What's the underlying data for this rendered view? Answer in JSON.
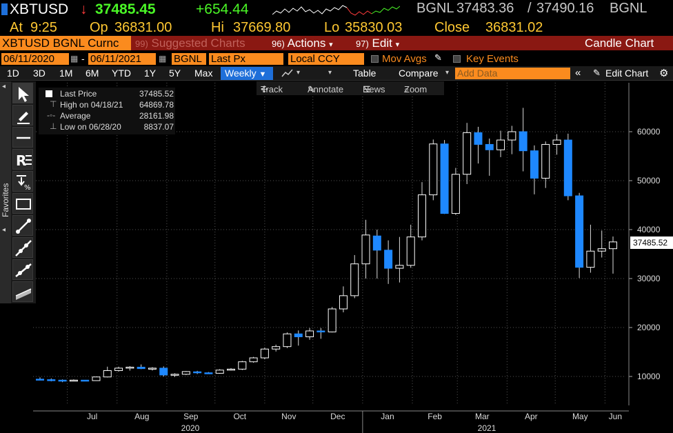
{
  "quote": {
    "ticker": "XBTUSD",
    "last": "37485.45",
    "change": "+654.44",
    "source": "BGNL",
    "bid": "37483.36",
    "ask": "37490.16",
    "source2": "BGNL",
    "at_label": "At",
    "time": "9:25",
    "open_label": "Op",
    "open": "36831.00",
    "high_label": "Hi",
    "high": "37669.80",
    "low_label": "Lo",
    "low": "35830.03",
    "close_label": "Close",
    "close": "36831.02"
  },
  "toolbar": {
    "security": "XBTUSD BGNL Curnc",
    "suggested_num": "99)",
    "suggested": "Suggested Charts",
    "actions_num": "96)",
    "actions": "Actions",
    "edit_num": "97)",
    "edit": "Edit",
    "chart_type": "Candle Chart"
  },
  "settings": {
    "start_date": "06/11/2020",
    "end_date": "06/11/2021",
    "source": "BGNL",
    "field": "Last Px",
    "currency": "Local CCY",
    "mov_avgs": "Mov Avgs",
    "key_events": "Key Events"
  },
  "periods": [
    "1D",
    "3D",
    "1M",
    "6M",
    "YTD",
    "1Y",
    "5Y",
    "Max"
  ],
  "frequency": "Weekly",
  "period_bar": {
    "table": "Table",
    "compare": "Compare",
    "add_data_placeholder": "Add Data",
    "edit_chart": "Edit Chart"
  },
  "left_tools": {
    "favorites": "Favorites"
  },
  "annotate_bar": {
    "track": "Track",
    "annotate": "Annotate",
    "news": "News",
    "zoom": "Zoom"
  },
  "legend": {
    "last_label": "Last Price",
    "last_value": "37485.52",
    "high_label": "High on 04/18/21",
    "high_value": "64869.78",
    "avg_label": "Average",
    "avg_value": "28161.98",
    "low_label": "Low on 06/28/20",
    "low_value": "8837.07"
  },
  "colors": {
    "up": "#ffffff",
    "down": "#1e88ff",
    "accent": "#fb8b1e",
    "bar_red": "#8a1812"
  },
  "chart_data": {
    "type": "candlestick",
    "frequency": "weekly",
    "y_ticks": [
      10000,
      20000,
      30000,
      40000,
      50000,
      60000
    ],
    "ylim": [
      0,
      69000
    ],
    "grid": true,
    "x_month_labels": [
      "Jul",
      "Aug",
      "Sep",
      "Oct",
      "Nov",
      "Dec",
      "Jan",
      "Feb",
      "Mar",
      "Apr",
      "May",
      "Jun"
    ],
    "x_year_labels": [
      "2020",
      "2021"
    ],
    "last_value_tag": "37485.52",
    "candles": [
      {
        "date": "2020-06-14",
        "open": 9450,
        "high": 9800,
        "low": 9200,
        "close": 9350
      },
      {
        "date": "2020-06-21",
        "open": 9350,
        "high": 9600,
        "low": 9000,
        "close": 9250
      },
      {
        "date": "2020-06-28",
        "open": 9250,
        "high": 9400,
        "low": 8840,
        "close": 9100
      },
      {
        "date": "2020-07-05",
        "open": 9100,
        "high": 9400,
        "low": 9050,
        "close": 9250
      },
      {
        "date": "2020-07-12",
        "open": 9250,
        "high": 9300,
        "low": 9050,
        "close": 9150
      },
      {
        "date": "2020-07-19",
        "open": 9150,
        "high": 9950,
        "low": 9100,
        "close": 9900
      },
      {
        "date": "2020-07-26",
        "open": 9900,
        "high": 12000,
        "low": 9800,
        "close": 11200
      },
      {
        "date": "2020-08-02",
        "open": 11200,
        "high": 12000,
        "low": 11000,
        "close": 11700
      },
      {
        "date": "2020-08-09",
        "open": 11700,
        "high": 12100,
        "low": 11200,
        "close": 11900
      },
      {
        "date": "2020-08-16",
        "open": 11900,
        "high": 12450,
        "low": 11500,
        "close": 11600
      },
      {
        "date": "2020-08-23",
        "open": 11600,
        "high": 11900,
        "low": 11200,
        "close": 11700
      },
      {
        "date": "2020-08-30",
        "open": 11700,
        "high": 12050,
        "low": 10000,
        "close": 10300
      },
      {
        "date": "2020-09-06",
        "open": 10300,
        "high": 10650,
        "low": 9900,
        "close": 10450
      },
      {
        "date": "2020-09-13",
        "open": 10450,
        "high": 11100,
        "low": 10300,
        "close": 11000
      },
      {
        "date": "2020-09-20",
        "open": 10950,
        "high": 11150,
        "low": 10500,
        "close": 10750
      },
      {
        "date": "2020-09-27",
        "open": 10750,
        "high": 10900,
        "low": 10500,
        "close": 10650
      },
      {
        "date": "2020-10-04",
        "open": 10650,
        "high": 11500,
        "low": 10550,
        "close": 11300
      },
      {
        "date": "2020-10-11",
        "open": 11300,
        "high": 11700,
        "low": 11200,
        "close": 11500
      },
      {
        "date": "2020-10-18",
        "open": 11500,
        "high": 13200,
        "low": 11300,
        "close": 13000
      },
      {
        "date": "2020-10-25",
        "open": 13000,
        "high": 14000,
        "low": 12800,
        "close": 13800
      },
      {
        "date": "2020-11-01",
        "open": 13800,
        "high": 15900,
        "low": 13500,
        "close": 15600
      },
      {
        "date": "2020-11-08",
        "open": 15600,
        "high": 16500,
        "low": 15100,
        "close": 16100
      },
      {
        "date": "2020-11-15",
        "open": 16100,
        "high": 19000,
        "low": 15800,
        "close": 18700
      },
      {
        "date": "2020-11-22",
        "open": 18700,
        "high": 19400,
        "low": 16300,
        "close": 18100
      },
      {
        "date": "2020-11-29",
        "open": 18100,
        "high": 19900,
        "low": 17500,
        "close": 19300
      },
      {
        "date": "2020-12-06",
        "open": 19300,
        "high": 19900,
        "low": 17700,
        "close": 19100
      },
      {
        "date": "2020-12-13",
        "open": 19100,
        "high": 24200,
        "low": 19000,
        "close": 23800
      },
      {
        "date": "2020-12-20",
        "open": 23800,
        "high": 28400,
        "low": 23100,
        "close": 26500
      },
      {
        "date": "2020-12-27",
        "open": 26500,
        "high": 34800,
        "low": 26000,
        "close": 33000
      },
      {
        "date": "2021-01-03",
        "open": 33000,
        "high": 42000,
        "low": 30000,
        "close": 38900
      },
      {
        "date": "2021-01-10",
        "open": 38700,
        "high": 40000,
        "low": 30000,
        "close": 35800
      },
      {
        "date": "2021-01-17",
        "open": 35800,
        "high": 37800,
        "low": 28900,
        "close": 32100
      },
      {
        "date": "2021-01-24",
        "open": 32100,
        "high": 38500,
        "low": 29200,
        "close": 32700
      },
      {
        "date": "2021-01-31",
        "open": 32700,
        "high": 41000,
        "low": 32200,
        "close": 38500
      },
      {
        "date": "2021-02-07",
        "open": 38500,
        "high": 49700,
        "low": 37800,
        "close": 47100
      },
      {
        "date": "2021-02-14",
        "open": 47100,
        "high": 58400,
        "low": 46000,
        "close": 57500
      },
      {
        "date": "2021-02-21",
        "open": 57500,
        "high": 58300,
        "low": 43200,
        "close": 43300
      },
      {
        "date": "2021-02-28",
        "open": 43300,
        "high": 52600,
        "low": 43000,
        "close": 51300
      },
      {
        "date": "2021-03-07",
        "open": 51300,
        "high": 61800,
        "low": 49300,
        "close": 59800
      },
      {
        "date": "2021-03-14",
        "open": 59800,
        "high": 61000,
        "low": 53500,
        "close": 57400
      },
      {
        "date": "2021-03-21",
        "open": 57400,
        "high": 58600,
        "low": 51000,
        "close": 56300
      },
      {
        "date": "2021-03-28",
        "open": 56300,
        "high": 60200,
        "low": 54800,
        "close": 58300
      },
      {
        "date": "2021-04-04",
        "open": 58300,
        "high": 61200,
        "low": 55400,
        "close": 60000
      },
      {
        "date": "2021-04-11",
        "open": 60000,
        "high": 64870,
        "low": 51900,
        "close": 56100
      },
      {
        "date": "2021-04-18",
        "open": 56100,
        "high": 57200,
        "low": 47200,
        "close": 50500
      },
      {
        "date": "2021-04-25",
        "open": 50500,
        "high": 58000,
        "low": 48500,
        "close": 57400
      },
      {
        "date": "2021-05-02",
        "open": 57400,
        "high": 59500,
        "low": 55300,
        "close": 58300
      },
      {
        "date": "2021-05-09",
        "open": 58300,
        "high": 59600,
        "low": 46000,
        "close": 46900
      },
      {
        "date": "2021-05-16",
        "open": 46900,
        "high": 47500,
        "low": 30100,
        "close": 32300
      },
      {
        "date": "2021-05-23",
        "open": 32300,
        "high": 41000,
        "low": 31200,
        "close": 35600
      },
      {
        "date": "2021-05-30",
        "open": 35600,
        "high": 39800,
        "low": 34300,
        "close": 36100
      },
      {
        "date": "2021-06-06",
        "open": 36100,
        "high": 38600,
        "low": 31000,
        "close": 37485.52
      }
    ]
  }
}
